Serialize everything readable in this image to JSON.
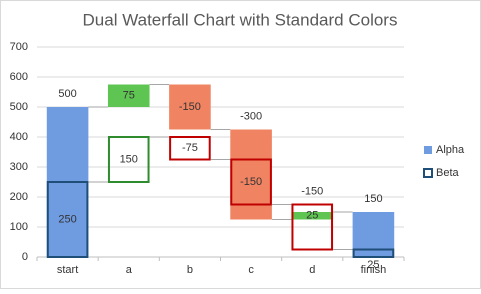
{
  "chart_data": {
    "type": "waterfall",
    "title": "Dual Waterfall Chart with Standard Colors",
    "categories": [
      "start",
      "a",
      "b",
      "c",
      "d",
      "finish"
    ],
    "series": [
      {
        "name": "Alpha",
        "style": "filled",
        "color": "#6f9be0",
        "increase_color": "#5fc552",
        "decrease_color": "#f08462",
        "values": [
          500,
          75,
          -150,
          -300,
          25,
          150
        ]
      },
      {
        "name": "Beta",
        "style": "outline",
        "color": "#1f4e79",
        "increase_color": "#2e8b2e",
        "decrease_color": "#c00000",
        "values": [
          250,
          150,
          -75,
          -150,
          -150,
          25
        ]
      }
    ],
    "ylim": [
      0,
      700
    ],
    "yticks": [
      0,
      100,
      200,
      300,
      400,
      500,
      600,
      700
    ],
    "grid": true,
    "legend": "right"
  }
}
